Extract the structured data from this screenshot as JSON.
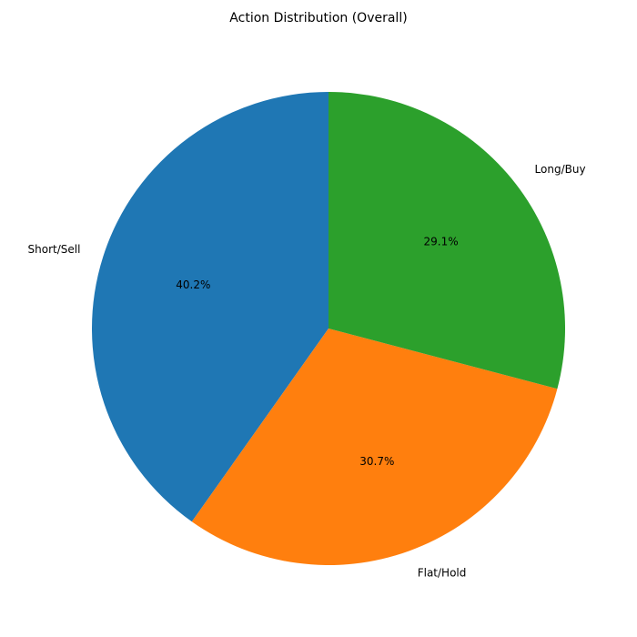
{
  "chart_data": {
    "type": "pie",
    "title": "Action Distribution (Overall)",
    "start_angle_deg": 90,
    "direction": "counterclockwise",
    "slices": [
      {
        "label": "Short/Sell",
        "value": 40.2,
        "pct_label": "40.2%",
        "color": "#1f77b4"
      },
      {
        "label": "Flat/Hold",
        "value": 30.7,
        "pct_label": "30.7%",
        "color": "#ff7f0e"
      },
      {
        "label": "Long/Buy",
        "value": 29.1,
        "pct_label": "29.1%",
        "color": "#2ca02c"
      }
    ]
  }
}
